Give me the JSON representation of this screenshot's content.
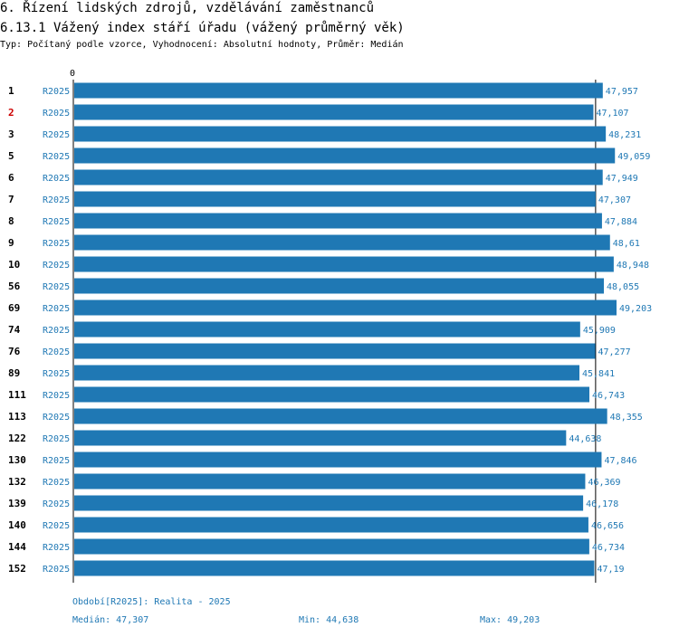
{
  "header": {
    "title": "6. Řízení lidských zdrojů, vzdělávání zaměstnanců",
    "subtitle": "6.13.1 Vážený index stáří úřadu (vážený průměrný věk)",
    "type_line": "Typ: Počítaný podle vzorce, Vyhodnocení: Absolutní hodnoty, Průměr: Medián"
  },
  "colors": {
    "bar": "#1f78b4",
    "value_text": "#1f78b4",
    "highlight_label": "#cc0000",
    "axis": "#000000"
  },
  "chart_data": {
    "type": "bar",
    "orientation": "horizontal",
    "axis_zero_label": "0",
    "xlim": [
      0,
      49.203
    ],
    "series_name": "R2025",
    "categories": [
      "1",
      "2",
      "3",
      "5",
      "6",
      "7",
      "8",
      "9",
      "10",
      "56",
      "69",
      "74",
      "76",
      "89",
      "111",
      "113",
      "122",
      "130",
      "132",
      "139",
      "140",
      "144",
      "152"
    ],
    "values": [
      47.957,
      47.107,
      48.231,
      49.059,
      47.949,
      47.307,
      47.884,
      48.61,
      48.948,
      48.055,
      49.203,
      45.909,
      47.277,
      45.841,
      46.743,
      48.355,
      44.638,
      47.846,
      46.369,
      46.178,
      46.656,
      46.734,
      47.19
    ],
    "value_labels": [
      "47,957",
      "47,107",
      "48,231",
      "49,059",
      "47,949",
      "47,307",
      "47,884",
      "48,61",
      "48,948",
      "48,055",
      "49,203",
      "45,909",
      "47,277",
      "45,841",
      "46,743",
      "48,355",
      "44,638",
      "47,846",
      "46,369",
      "46,178",
      "46,656",
      "46,734",
      "47,19"
    ],
    "highlighted_category": "2",
    "median_value": 47.307
  },
  "footer": {
    "period": "Období[R2025]: Realita - 2025",
    "median": "Medián: 47,307",
    "min": "Min: 44,638",
    "max": "Max: 49,203"
  }
}
